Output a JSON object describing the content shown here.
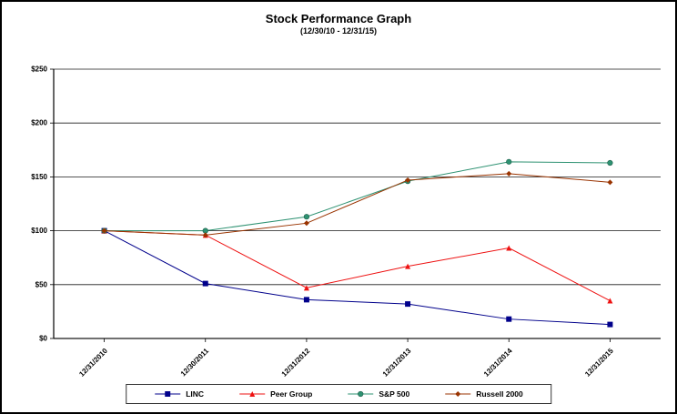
{
  "title": "Stock Performance Graph",
  "subtitle": "(12/30/10 - 12/31/15)",
  "chart_data": {
    "type": "line",
    "categories": [
      "12/31/2010",
      "12/30/2011",
      "12/31/2012",
      "12/31/2013",
      "12/31/2014",
      "12/31/2015"
    ],
    "series": [
      {
        "name": "LINC",
        "color": "#00008B",
        "marker": "square",
        "values": [
          100,
          51,
          36,
          32,
          18,
          13
        ]
      },
      {
        "name": "Peer Group",
        "color": "#EE1111",
        "marker": "triangle",
        "values": [
          100,
          96,
          47,
          67,
          84,
          35
        ]
      },
      {
        "name": "S&P 500",
        "color": "#2E9272",
        "marker": "circle",
        "values": [
          100,
          100,
          113,
          146,
          164,
          163
        ]
      },
      {
        "name": "Russell 2000",
        "color": "#993300",
        "marker": "diamond",
        "values": [
          100,
          96,
          107,
          147,
          153,
          145
        ]
      }
    ],
    "ylim": [
      0,
      250
    ],
    "ytick_values": [
      0,
      50,
      100,
      150,
      200,
      250
    ],
    "ytick_labels": [
      "$0",
      "$50",
      "$100",
      "$150",
      "$200",
      "$250"
    ],
    "grid": true,
    "legend_position": "bottom"
  }
}
